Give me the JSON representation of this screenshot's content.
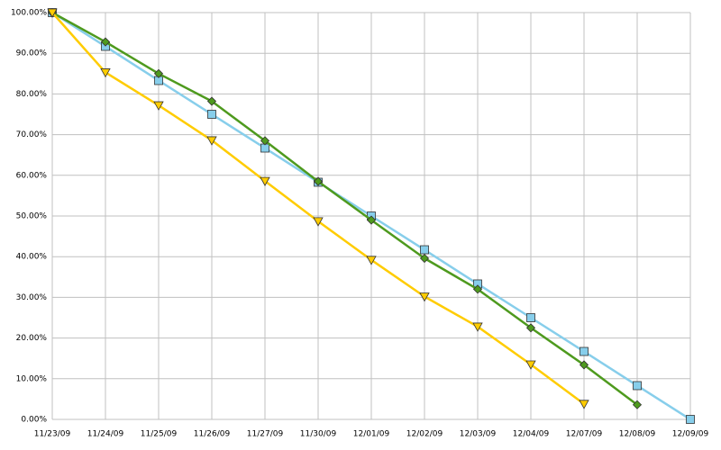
{
  "chart_data": {
    "type": "line",
    "categories": [
      "11/23/09",
      "11/24/09",
      "11/25/09",
      "11/26/09",
      "11/27/09",
      "11/30/09",
      "12/01/09",
      "12/02/09",
      "12/03/09",
      "12/04/09",
      "12/07/09",
      "12/08/09",
      "12/09/09"
    ],
    "series": [
      {
        "color": "#87ceeb",
        "marker": "square",
        "values": [
          100,
          91.7,
          83.3,
          75,
          66.7,
          58.3,
          50,
          41.7,
          33.3,
          25,
          16.7,
          8.3,
          0
        ]
      },
      {
        "color": "#4e9a1e",
        "marker": "diamond",
        "values": [
          100,
          92.8,
          85,
          78.2,
          68.5,
          58.5,
          49,
          39.6,
          32,
          22.5,
          13.4,
          3.6,
          null
        ]
      },
      {
        "color": "#ffcc00",
        "marker": "triangle-down",
        "values": [
          100,
          85.3,
          77.2,
          68.6,
          58.6,
          48.7,
          39.2,
          30.2,
          22.8,
          13.5,
          3.8,
          null,
          null
        ]
      }
    ],
    "ylim": [
      0,
      100
    ],
    "yticks": [
      {
        "value": 0,
        "label": "0.00%"
      },
      {
        "value": 10,
        "label": "10.00%"
      },
      {
        "value": 20,
        "label": "20.00%"
      },
      {
        "value": 30,
        "label": "30.00%"
      },
      {
        "value": 40,
        "label": "40.00%"
      },
      {
        "value": 50,
        "label": "50.00%"
      },
      {
        "value": 60,
        "label": "60.00%"
      },
      {
        "value": 70,
        "label": "70.00%"
      },
      {
        "value": 80,
        "label": "80.00%"
      },
      {
        "value": 90,
        "label": "90.00%"
      },
      {
        "value": 100,
        "label": "100.00%"
      }
    ],
    "grid": true
  }
}
